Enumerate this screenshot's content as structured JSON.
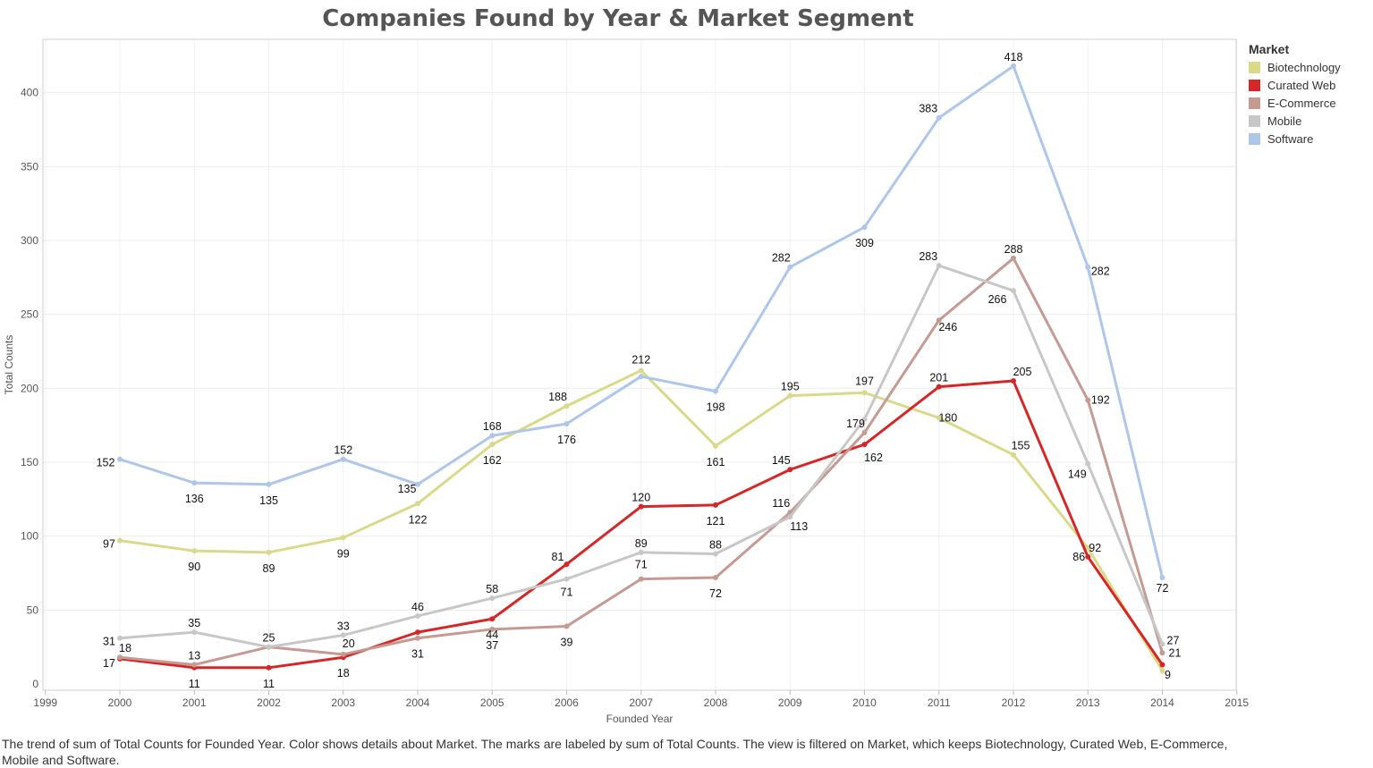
{
  "chart_data": {
    "type": "line",
    "title": "Companies Found by Year & Market Segment",
    "xlabel": "Founded Year",
    "ylabel": "Total Counts",
    "x_ticks": [
      1999,
      2000,
      2001,
      2002,
      2003,
      2004,
      2005,
      2006,
      2007,
      2008,
      2009,
      2010,
      2011,
      2012,
      2013,
      2014,
      2015
    ],
    "y_ticks": [
      0,
      50,
      100,
      150,
      200,
      250,
      300,
      350,
      400
    ],
    "xlim": [
      1999,
      2015
    ],
    "ylim": [
      0,
      420
    ],
    "grid": true,
    "legend": {
      "title": "Market",
      "position": "right"
    },
    "x": [
      2000,
      2001,
      2002,
      2003,
      2004,
      2005,
      2006,
      2007,
      2008,
      2009,
      2010,
      2011,
      2012,
      2013,
      2014
    ],
    "series": [
      {
        "name": "Biotechnology",
        "color": "#d9d98a",
        "values": [
          97,
          90,
          89,
          99,
          122,
          162,
          188,
          212,
          161,
          195,
          197,
          180,
          155,
          92,
          9
        ],
        "labels": [
          "97",
          "90",
          "89",
          "99",
          "122",
          "162",
          "188",
          "212",
          "161",
          "195",
          "197",
          "180",
          "155",
          "92",
          "9"
        ]
      },
      {
        "name": "Curated Web",
        "color": "#d62728",
        "values": [
          17,
          11,
          11,
          18,
          35,
          44,
          81,
          120,
          121,
          145,
          162,
          201,
          205,
          86,
          13
        ],
        "labels": [
          "17",
          "11",
          "11",
          "18",
          "",
          "44",
          "81",
          "120",
          "121",
          "145",
          "162",
          "201",
          "205",
          "86",
          ""
        ]
      },
      {
        "name": "E-Commerce",
        "color": "#c49a92",
        "values": [
          18,
          13,
          25,
          20,
          31,
          37,
          39,
          71,
          72,
          116,
          170,
          246,
          288,
          192,
          21
        ],
        "labels": [
          "18",
          "13",
          "",
          "20",
          "31",
          "37",
          "39",
          "71",
          "72",
          "116",
          "",
          "246",
          "288",
          "192",
          "21"
        ]
      },
      {
        "name": "Mobile",
        "color": "#c7c7c7",
        "values": [
          31,
          35,
          25,
          33,
          46,
          58,
          71,
          89,
          88,
          113,
          179,
          283,
          266,
          149,
          27
        ],
        "labels": [
          "31",
          "35",
          "25",
          "33",
          "46",
          "58",
          "71",
          "89",
          "88",
          "113",
          "179",
          "283",
          "266",
          "149",
          "27"
        ]
      },
      {
        "name": "Software",
        "color": "#aec7e8",
        "values": [
          152,
          136,
          135,
          152,
          135,
          168,
          176,
          208,
          198,
          282,
          309,
          383,
          418,
          282,
          72
        ],
        "labels": [
          "152",
          "136",
          "135",
          "152",
          "135",
          "168",
          "176",
          "",
          "198",
          "282",
          "309",
          "383",
          "418",
          "282",
          "72"
        ]
      }
    ]
  },
  "caption": "The trend of sum of Total Counts for Founded Year.  Color shows details about Market.  The marks are labeled by sum of Total Counts. The view is filtered on Market, which keeps Biotechnology, Curated Web, E-Commerce, Mobile and Software."
}
